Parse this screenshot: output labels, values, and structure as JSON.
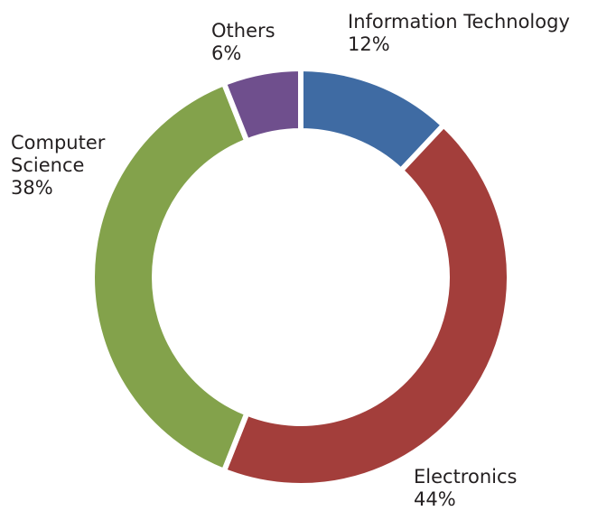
{
  "chart_data": {
    "type": "donut",
    "categories": [
      "Information Technology",
      "Electronics",
      "Computer Science",
      "Others"
    ],
    "values": [
      12,
      44,
      38,
      6
    ],
    "value_labels": [
      "12%",
      "44%",
      "38%",
      "6%"
    ],
    "colors": [
      "#3f6ba3",
      "#a33e3b",
      "#83a24b",
      "#6f4f8d"
    ]
  }
}
